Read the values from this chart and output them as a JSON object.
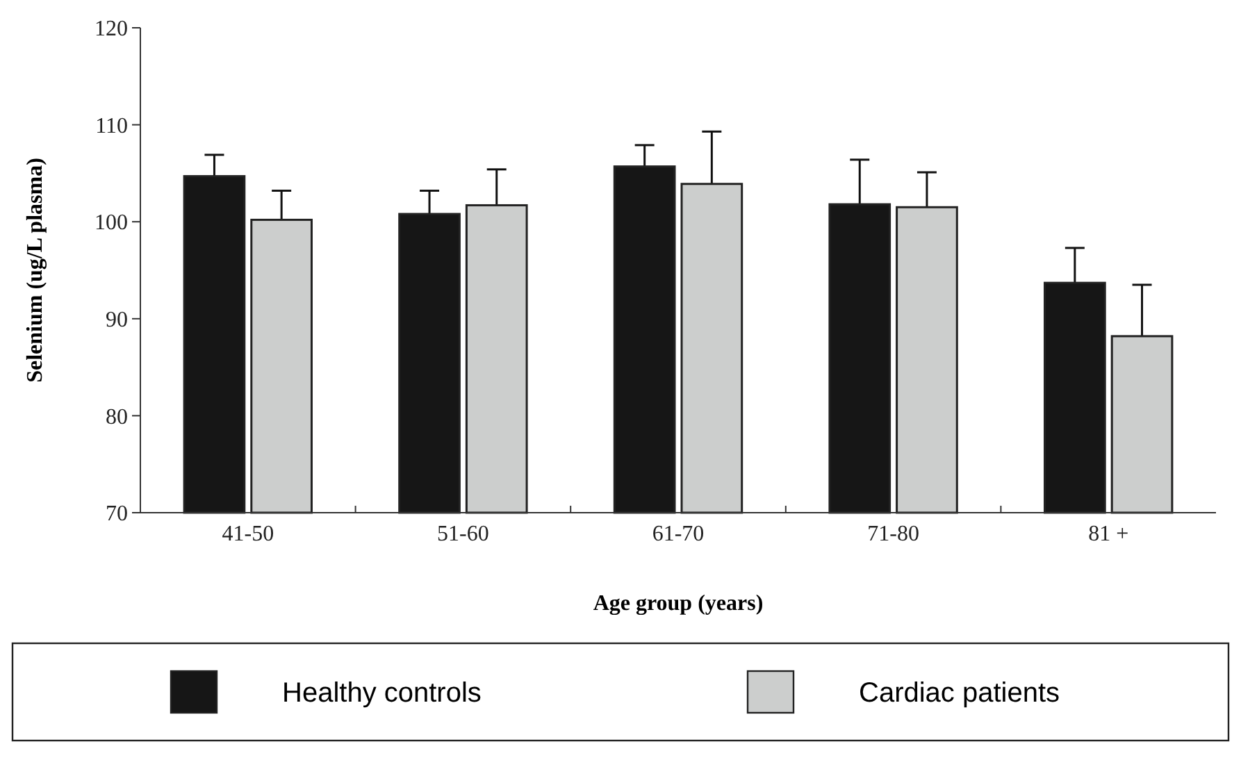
{
  "chart_data": {
    "type": "bar",
    "xlabel": "Age group (years)",
    "ylabel": "Selenium (ug/L plasma)",
    "categories": [
      "41-50",
      "51-60",
      "61-70",
      "71-80",
      "81 +"
    ],
    "series": [
      {
        "name": "Healthy controls",
        "color": "#161616",
        "values": [
          104.7,
          100.8,
          105.7,
          101.8,
          93.7
        ],
        "errors": [
          2.2,
          2.4,
          2.2,
          4.6,
          3.6
        ]
      },
      {
        "name": "Cardiac patients",
        "color": "#cccecd",
        "values": [
          100.2,
          101.7,
          103.9,
          101.5,
          88.2
        ],
        "errors": [
          3.0,
          3.7,
          5.4,
          3.6,
          5.3
        ]
      }
    ],
    "ylim": [
      70,
      120
    ],
    "yticks": [
      70,
      80,
      90,
      100,
      110,
      120
    ],
    "legend": "bottom"
  }
}
